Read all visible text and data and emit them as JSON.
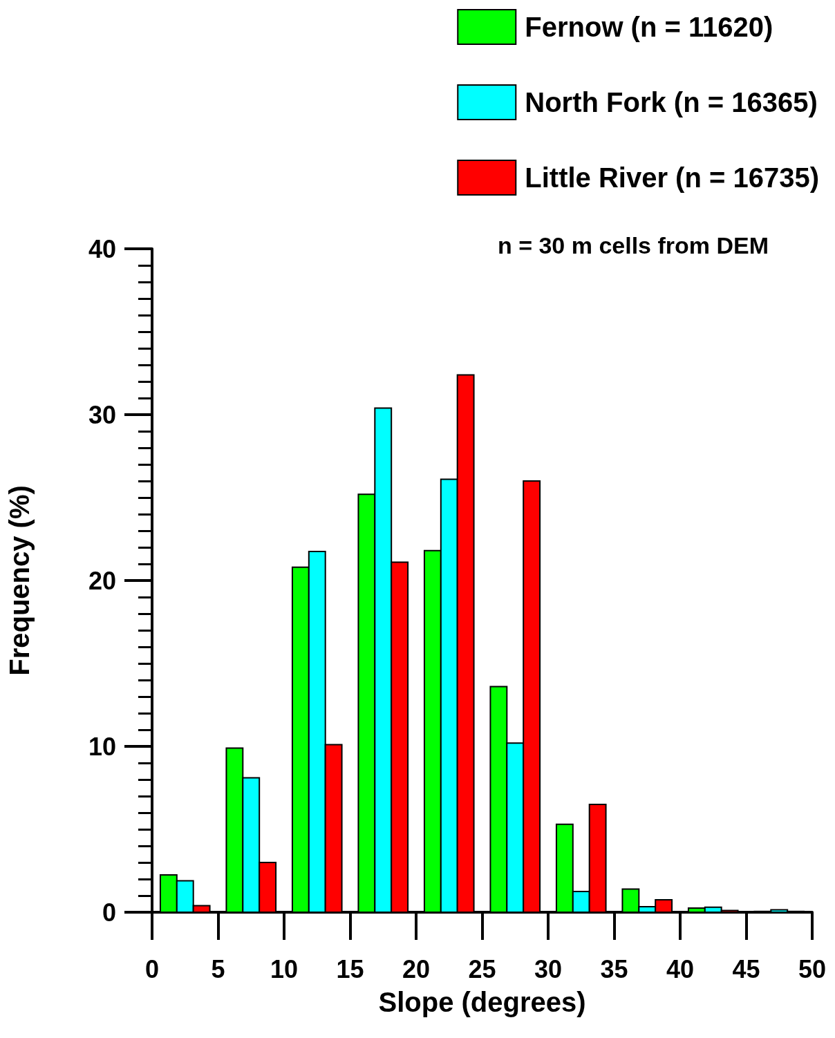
{
  "chart_data": {
    "type": "histogram",
    "xlabel": "Slope (degrees)",
    "ylabel": "Frequency (%)",
    "annotations": [
      "n = 30 m cells from DEM"
    ],
    "bins": [
      0,
      5,
      10,
      15,
      20,
      25,
      30,
      35,
      40,
      45,
      50
    ],
    "series": [
      {
        "name": "Fernow (n = 11620)",
        "color": "#00ff00",
        "values": [
          2.25,
          9.9,
          20.8,
          25.2,
          21.8,
          13.6,
          5.3,
          1.4,
          0.25,
          0.05
        ]
      },
      {
        "name": "North Fork (n = 16365)",
        "color": "#00ffff",
        "values": [
          1.9,
          8.1,
          21.75,
          30.4,
          26.1,
          10.2,
          1.25,
          0.33,
          0.3,
          0.15
        ]
      },
      {
        "name": "Little River (n = 16735)",
        "color": "#ff0000",
        "values": [
          0.4,
          3.0,
          10.1,
          21.1,
          32.4,
          26.0,
          6.5,
          0.75,
          0.1,
          0.05
        ]
      }
    ],
    "xlim": [
      0,
      50
    ],
    "xticks": [
      0,
      5,
      10,
      15,
      20,
      25,
      30,
      35,
      40,
      45,
      50
    ],
    "ylim": [
      0,
      40
    ],
    "yticks": [
      0,
      10,
      20,
      30,
      40
    ],
    "grid": false,
    "legend": "top right"
  }
}
